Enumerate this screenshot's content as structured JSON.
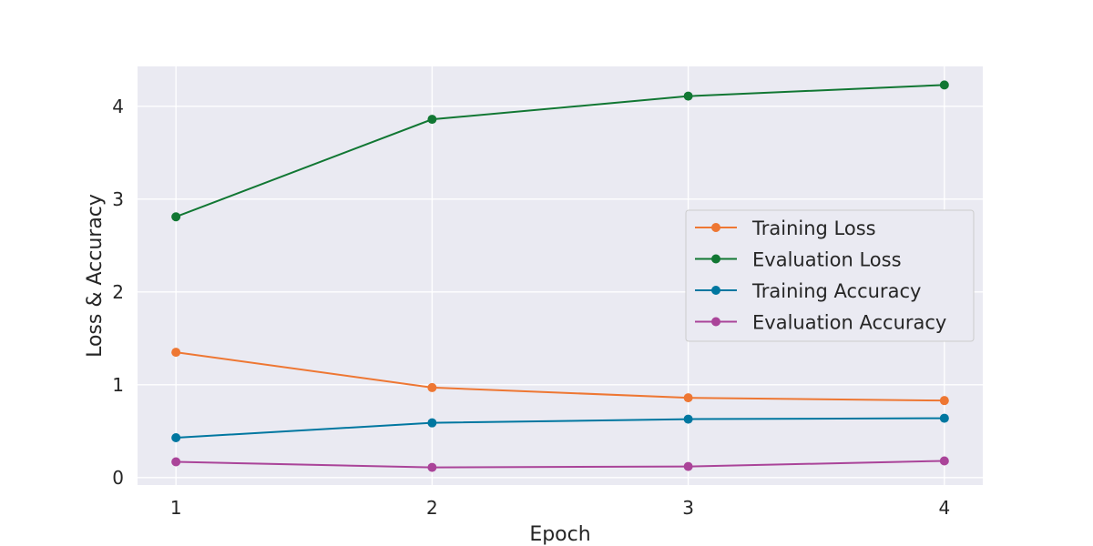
{
  "chart_data": {
    "type": "line",
    "title": "",
    "xlabel": "Epoch",
    "ylabel": "Loss & Accuracy",
    "x": [
      1,
      2,
      3,
      4
    ],
    "x_ticks": [
      "1",
      "2",
      "3",
      "4"
    ],
    "y_ticks": [
      "0",
      "1",
      "2",
      "3",
      "4"
    ],
    "ylim": [
      -0.08,
      4.43
    ],
    "xlim": [
      0.85,
      4.15
    ],
    "grid": true,
    "legend_position": "center-right",
    "series": [
      {
        "name": "Training Loss",
        "color": "#ee7733",
        "values": [
          1.35,
          0.97,
          0.86,
          0.83
        ]
      },
      {
        "name": "Evaluation Loss",
        "color": "#117733",
        "values": [
          2.81,
          3.86,
          4.11,
          4.23
        ]
      },
      {
        "name": "Training Accuracy",
        "color": "#0077a0",
        "values": [
          0.43,
          0.59,
          0.63,
          0.64
        ]
      },
      {
        "name": "Evaluation Accuracy",
        "color": "#aa4499",
        "values": [
          0.17,
          0.11,
          0.12,
          0.18
        ]
      }
    ]
  }
}
